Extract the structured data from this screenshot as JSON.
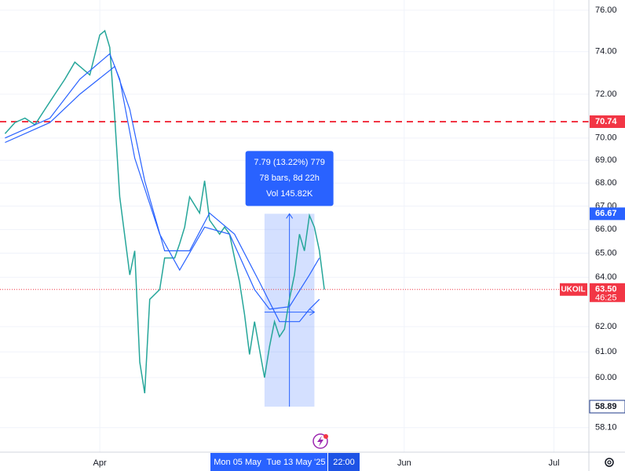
{
  "chart_data": {
    "type": "line",
    "symbol": "UKOIL",
    "log_scale": true,
    "grid": true,
    "xlim": [
      "2025-03-12",
      "2025-07-08"
    ],
    "xticks": [
      {
        "value": "2025-04-01",
        "label": "Apr"
      },
      {
        "value": "2025-06-01",
        "label": "Jun"
      },
      {
        "value": "2025-07-01",
        "label": "Jul"
      }
    ],
    "ylim": [
      57.19,
      76.5
    ],
    "yticks": [
      {
        "value": 76,
        "label": "76.00"
      },
      {
        "value": 74,
        "label": "74.00"
      },
      {
        "value": 72,
        "label": "72.00"
      },
      {
        "value": 70,
        "label": "70.00"
      },
      {
        "value": 69,
        "label": "69.00"
      },
      {
        "value": 68,
        "label": "68.00"
      },
      {
        "value": 67,
        "label": "67.00"
      },
      {
        "value": 66,
        "label": "66.00"
      },
      {
        "value": 65,
        "label": "65.00"
      },
      {
        "value": 64,
        "label": "64.00"
      },
      {
        "value": 62,
        "label": "62.00"
      },
      {
        "value": 61,
        "label": "61.00"
      },
      {
        "value": 60,
        "label": "60.00"
      },
      {
        "value": 58.1,
        "label": "58.10"
      }
    ],
    "series": [
      {
        "color": "#26a69a",
        "x": [
          "2025-03-13",
          "2025-03-15",
          "2025-03-17",
          "2025-03-19",
          "2025-03-21",
          "2025-03-23",
          "2025-03-25",
          "2025-03-27",
          "2025-03-30",
          "2025-04-01",
          "2025-04-02",
          "2025-04-03",
          "2025-04-04",
          "2025-04-05",
          "2025-04-07",
          "2025-04-08",
          "2025-04-09",
          "2025-04-10",
          "2025-04-11",
          "2025-04-13",
          "2025-04-14",
          "2025-04-16",
          "2025-04-17",
          "2025-04-18",
          "2025-04-19",
          "2025-04-21",
          "2025-04-22",
          "2025-04-23",
          "2025-04-25",
          "2025-04-26",
          "2025-04-27",
          "2025-04-29",
          "2025-04-30",
          "2025-05-01",
          "2025-05-02",
          "2025-05-04",
          "2025-05-05",
          "2025-05-06",
          "2025-05-07",
          "2025-05-08",
          "2025-05-09",
          "2025-05-10",
          "2025-05-11",
          "2025-05-12",
          "2025-05-13",
          "2025-05-14",
          "2025-05-15",
          "2025-05-16"
        ],
        "values": [
          70.2,
          70.7,
          70.9,
          70.6,
          71.3,
          72.0,
          72.7,
          73.5,
          72.9,
          74.8,
          75.0,
          74.2,
          70.9,
          67.4,
          64.1,
          65.1,
          60.6,
          59.4,
          63.1,
          63.5,
          64.8,
          64.8,
          65.4,
          66.1,
          67.4,
          66.7,
          68.1,
          66.4,
          65.8,
          66.1,
          65.8,
          63.8,
          62.5,
          60.9,
          62.2,
          60.0,
          61.2,
          62.2,
          61.6,
          61.9,
          63.1,
          64.1,
          65.8,
          65.1,
          66.6,
          66.1,
          65.1,
          63.5
        ]
      },
      {
        "color": "#2962ff",
        "x": [
          "2025-03-13",
          "2025-03-22",
          "2025-03-28",
          "2025-04-03",
          "2025-04-05",
          "2025-04-08",
          "2025-04-13",
          "2025-04-17",
          "2025-04-22",
          "2025-04-27",
          "2025-05-02",
          "2025-05-05",
          "2025-05-09",
          "2025-05-13",
          "2025-05-15"
        ],
        "values": [
          70.0,
          70.9,
          72.7,
          73.9,
          72.7,
          69.1,
          65.8,
          64.3,
          66.1,
          65.8,
          63.5,
          62.7,
          62.8,
          64.1,
          64.8
        ]
      },
      {
        "color": "#2962ff",
        "x": [
          "2025-03-13",
          "2025-03-22",
          "2025-03-28",
          "2025-04-04",
          "2025-04-07",
          "2025-04-10",
          "2025-04-14",
          "2025-04-19",
          "2025-04-23",
          "2025-04-28",
          "2025-05-03",
          "2025-05-07",
          "2025-05-11",
          "2025-05-13",
          "2025-05-15"
        ],
        "values": [
          69.8,
          70.7,
          72.0,
          73.3,
          71.3,
          68.1,
          65.1,
          65.1,
          66.7,
          65.8,
          63.8,
          62.2,
          62.2,
          62.7,
          63.1
        ]
      }
    ],
    "level_line": {
      "value": 70.74,
      "color": "#f23645",
      "style": "dashed"
    },
    "last_price": {
      "value": 63.5,
      "label": "63.50",
      "countdown": "46:25",
      "color": "#f23645"
    },
    "measure": {
      "start": "2025-05-04",
      "end": "2025-05-14",
      "low": 58.89,
      "high": 66.67,
      "lines": [
        "7.79 (13.22%) 779",
        "78 bars, 8d 22h",
        "Vol 145.82K"
      ]
    },
    "crosshair_labels": [
      "Mon 05 May",
      "Tue 13 May '25",
      "22:00"
    ]
  }
}
